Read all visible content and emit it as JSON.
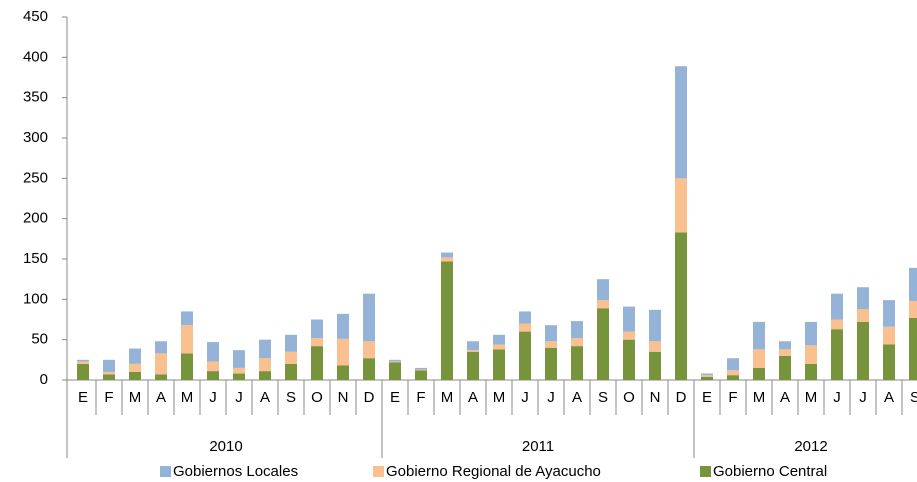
{
  "chart_data": {
    "type": "stacked_bar",
    "groups": [
      {
        "label": "2010",
        "categories": [
          "E",
          "F",
          "M",
          "A",
          "M",
          "J",
          "J",
          "A",
          "S",
          "O",
          "N",
          "D"
        ]
      },
      {
        "label": "2011",
        "categories": [
          "E",
          "F",
          "M",
          "A",
          "M",
          "J",
          "J",
          "A",
          "S",
          "O",
          "N",
          "D"
        ]
      },
      {
        "label": "2012",
        "categories": [
          "E",
          "F",
          "M",
          "A",
          "M",
          "J",
          "J",
          "A",
          "S"
        ]
      }
    ],
    "series": [
      {
        "name": "Gobierno Central",
        "color": "#77933c",
        "values": [
          20,
          7,
          10,
          7,
          33,
          11,
          8,
          11,
          20,
          42,
          18,
          27,
          22,
          12,
          147,
          35,
          38,
          60,
          40,
          42,
          89,
          50,
          35,
          183,
          4,
          6,
          15,
          30,
          20,
          63,
          72,
          44,
          77
        ]
      },
      {
        "name": "Gobierno Regional de Ayacucho",
        "color": "#fac090",
        "values": [
          3,
          3,
          10,
          26,
          35,
          12,
          7,
          16,
          15,
          10,
          33,
          21,
          1,
          1,
          5,
          2,
          6,
          10,
          8,
          10,
          10,
          10,
          13,
          67,
          2,
          6,
          23,
          8,
          23,
          12,
          16,
          22,
          21
        ]
      },
      {
        "name": "Gobiernos Locales",
        "color": "#95b3d7",
        "values": [
          2,
          15,
          19,
          15,
          17,
          24,
          22,
          23,
          21,
          23,
          31,
          59,
          2,
          2,
          6,
          11,
          12,
          15,
          20,
          21,
          26,
          31,
          39,
          139,
          2,
          15,
          34,
          10,
          29,
          32,
          27,
          33,
          41
        ]
      }
    ],
    "ylim": [
      0,
      450
    ],
    "yticks": [
      0,
      50,
      100,
      150,
      200,
      250,
      300,
      350,
      400,
      450
    ]
  }
}
